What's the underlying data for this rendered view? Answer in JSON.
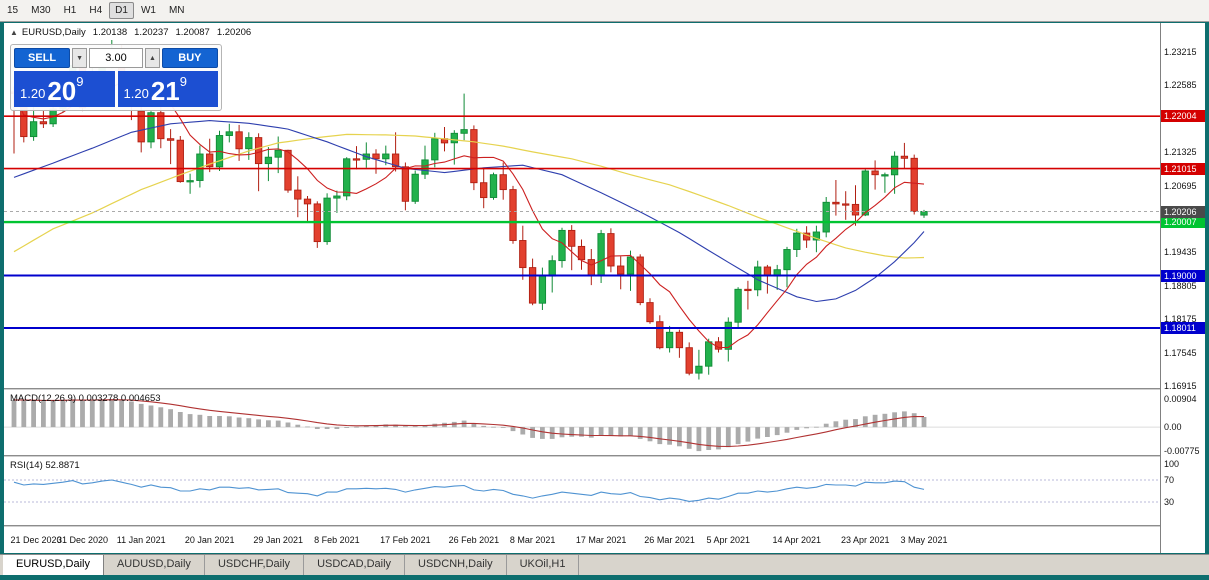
{
  "toolbar": {
    "timeframes": [
      "15",
      "M30",
      "H1",
      "H4",
      "D1",
      "W1",
      "MN"
    ],
    "active": "D1"
  },
  "chart_header": {
    "collapse_glyph": "▲",
    "symbol": "EURUSD,Daily",
    "open": "1.20138",
    "high": "1.20237",
    "low": "1.20087",
    "close": "1.20206"
  },
  "trade_panel": {
    "sell_label": "SELL",
    "buy_label": "BUY",
    "volume": "3.00",
    "stepper_down_glyph": "▼",
    "stepper_up_glyph": "▲",
    "bid": {
      "prefix": "1.20",
      "big": "20",
      "sup": "9"
    },
    "ask": {
      "prefix": "1.20",
      "big": "21",
      "sup": "9"
    },
    "button_color": "#1464d2",
    "price_box_color": "#1c4fd2"
  },
  "macd_panel": {
    "label": "MACD(12,26,9) 0.003278 0.004653"
  },
  "rsi_panel": {
    "label": "RSI(14) 52.8871"
  },
  "tabs": [
    {
      "label": "EURUSD,Daily",
      "active": true
    },
    {
      "label": "AUDUSD,Daily",
      "active": false
    },
    {
      "label": "USDCHF,Daily",
      "active": false
    },
    {
      "label": "USDCAD,Daily",
      "active": false
    },
    {
      "label": "USDCNH,Daily",
      "active": false
    },
    {
      "label": "UKOil,H1",
      "active": false
    }
  ],
  "ui_colors": {
    "frame_teal": "#0e6e6e",
    "tab_bar": "#d8d4cc",
    "toolbar_bg": "#f3f2ef"
  },
  "chart_data": {
    "type": "candlestick",
    "symbol": "EURUSD",
    "timeframe": "Daily",
    "ylim": [
      1.1688,
      1.2376
    ],
    "y_ticks": [
      1.23215,
      1.22585,
      1.21955,
      1.21325,
      1.20695,
      1.20065,
      1.19435,
      1.18805,
      1.18175,
      1.17545,
      1.16915
    ],
    "colors": {
      "up": "#22b14c",
      "up_border": "#0f8a36",
      "down": "#e2402e",
      "down_border": "#b01f12"
    },
    "x_labels": [
      {
        "text": "21 Dec 2020",
        "bar": 0
      },
      {
        "text": "31 Dec 2020",
        "bar": 7
      },
      {
        "text": "11 Jan 2021",
        "bar": 13
      },
      {
        "text": "20 Jan 2021",
        "bar": 20
      },
      {
        "text": "29 Jan 2021",
        "bar": 27
      },
      {
        "text": "8 Feb 2021",
        "bar": 33
      },
      {
        "text": "17 Feb 2021",
        "bar": 40
      },
      {
        "text": "26 Feb 2021",
        "bar": 47
      },
      {
        "text": "8 Mar 2021",
        "bar": 53
      },
      {
        "text": "17 Mar 2021",
        "bar": 60
      },
      {
        "text": "26 Mar 2021",
        "bar": 67
      },
      {
        "text": "5 Apr 2021",
        "bar": 73
      },
      {
        "text": "14 Apr 2021",
        "bar": 80
      },
      {
        "text": "23 Apr 2021",
        "bar": 87
      },
      {
        "text": "3 May 2021",
        "bar": 93
      }
    ],
    "candles": [
      [
        1.2246,
        1.2256,
        1.213,
        1.2243
      ],
      [
        1.2243,
        1.2251,
        1.2151,
        1.2162
      ],
      [
        1.2162,
        1.2223,
        1.2154,
        1.219
      ],
      [
        1.219,
        1.2212,
        1.2178,
        1.2186
      ],
      [
        1.2186,
        1.2251,
        1.218,
        1.2214
      ],
      [
        1.2214,
        1.2276,
        1.2209,
        1.225
      ],
      [
        1.225,
        1.2312,
        1.2246,
        1.2296
      ],
      [
        1.2296,
        1.2316,
        1.221,
        1.2216
      ],
      [
        1.224,
        1.2309,
        1.2228,
        1.225
      ],
      [
        1.225,
        1.2305,
        1.2244,
        1.2297
      ],
      [
        1.2297,
        1.2344,
        1.229,
        1.2326
      ],
      [
        1.2326,
        1.2335,
        1.2245,
        1.227
      ],
      [
        1.227,
        1.2285,
        1.2193,
        1.222
      ],
      [
        1.221,
        1.2226,
        1.2132,
        1.2152
      ],
      [
        1.2152,
        1.221,
        1.214,
        1.2207
      ],
      [
        1.2207,
        1.2223,
        1.214,
        1.2158
      ],
      [
        1.2158,
        1.2176,
        1.211,
        1.2155
      ],
      [
        1.2155,
        1.2163,
        1.2075,
        1.2077
      ],
      [
        1.2077,
        1.2092,
        1.2054,
        1.2079
      ],
      [
        1.2079,
        1.2145,
        1.2066,
        1.2129
      ],
      [
        1.2129,
        1.2158,
        1.2095,
        1.2105
      ],
      [
        1.2105,
        1.2173,
        1.2097,
        1.2164
      ],
      [
        1.2164,
        1.2186,
        1.2151,
        1.2171
      ],
      [
        1.2171,
        1.2184,
        1.2116,
        1.2139
      ],
      [
        1.2139,
        1.217,
        1.2118,
        1.216
      ],
      [
        1.216,
        1.2168,
        1.2059,
        1.2111
      ],
      [
        1.2111,
        1.2142,
        1.2078,
        1.2123
      ],
      [
        1.2123,
        1.2162,
        1.2093,
        1.2136
      ],
      [
        1.2136,
        1.2137,
        1.2056,
        1.2061
      ],
      [
        1.2061,
        1.2087,
        1.201,
        1.2044
      ],
      [
        1.2044,
        1.205,
        1.2002,
        1.2035
      ],
      [
        1.2035,
        1.204,
        1.1952,
        1.1964
      ],
      [
        1.1964,
        1.2055,
        1.1958,
        1.2046
      ],
      [
        1.2046,
        1.206,
        1.2018,
        1.205
      ],
      [
        1.205,
        1.2123,
        1.2042,
        1.212
      ],
      [
        1.212,
        1.2144,
        1.21,
        1.2119
      ],
      [
        1.2119,
        1.2151,
        1.2103,
        1.2129
      ],
      [
        1.2129,
        1.2138,
        1.2092,
        1.212
      ],
      [
        1.212,
        1.2145,
        1.2108,
        1.2129
      ],
      [
        1.2129,
        1.217,
        1.2096,
        1.2105
      ],
      [
        1.2105,
        1.2113,
        1.2023,
        1.204
      ],
      [
        1.204,
        1.2098,
        1.2035,
        1.2091
      ],
      [
        1.2091,
        1.2145,
        1.2082,
        1.2118
      ],
      [
        1.2118,
        1.2169,
        1.2104,
        1.2158
      ],
      [
        1.2158,
        1.218,
        1.2134,
        1.215
      ],
      [
        1.215,
        1.2174,
        1.2109,
        1.2168
      ],
      [
        1.2168,
        1.2243,
        1.2155,
        1.2175
      ],
      [
        1.2175,
        1.2183,
        1.2061,
        1.2075
      ],
      [
        1.2075,
        1.2101,
        1.2027,
        1.2047
      ],
      [
        1.2047,
        1.2094,
        1.2043,
        1.209
      ],
      [
        1.209,
        1.2113,
        1.2043,
        1.2062
      ],
      [
        1.2062,
        1.2069,
        1.196,
        1.1966
      ],
      [
        1.1966,
        1.1994,
        1.1892,
        1.1915
      ],
      [
        1.1915,
        1.1932,
        1.1844,
        1.1848
      ],
      [
        1.1848,
        1.1915,
        1.1835,
        1.1899
      ],
      [
        1.1899,
        1.1938,
        1.1868,
        1.1928
      ],
      [
        1.1928,
        1.199,
        1.1915,
        1.1985
      ],
      [
        1.1985,
        1.1995,
        1.191,
        1.1955
      ],
      [
        1.1955,
        1.1968,
        1.1911,
        1.193
      ],
      [
        1.193,
        1.195,
        1.1882,
        1.1899
      ],
      [
        1.1899,
        1.1986,
        1.1886,
        1.1979
      ],
      [
        1.1979,
        1.1989,
        1.1906,
        1.1918
      ],
      [
        1.1918,
        1.1936,
        1.1874,
        1.1903
      ],
      [
        1.1903,
        1.1947,
        1.1871,
        1.1935
      ],
      [
        1.1935,
        1.194,
        1.1844,
        1.1849
      ],
      [
        1.1849,
        1.1857,
        1.1809,
        1.1813
      ],
      [
        1.1813,
        1.1825,
        1.1761,
        1.1764
      ],
      [
        1.1764,
        1.1805,
        1.1755,
        1.1793
      ],
      [
        1.1793,
        1.1798,
        1.1745,
        1.1764
      ],
      [
        1.1764,
        1.1774,
        1.1712,
        1.1716
      ],
      [
        1.1716,
        1.176,
        1.1704,
        1.1729
      ],
      [
        1.1729,
        1.1781,
        1.1713,
        1.1775
      ],
      [
        1.1775,
        1.1784,
        1.1755,
        1.1761
      ],
      [
        1.1761,
        1.1821,
        1.1738,
        1.1812
      ],
      [
        1.1812,
        1.1878,
        1.1803,
        1.1874
      ],
      [
        1.1874,
        1.189,
        1.1836,
        1.1873
      ],
      [
        1.1873,
        1.1928,
        1.1861,
        1.1916
      ],
      [
        1.1916,
        1.192,
        1.1866,
        1.1899
      ],
      [
        1.1899,
        1.192,
        1.1873,
        1.1911
      ],
      [
        1.1911,
        1.1954,
        1.1878,
        1.1949
      ],
      [
        1.1949,
        1.1988,
        1.1935,
        1.198
      ],
      [
        1.198,
        1.1993,
        1.1952,
        1.1967
      ],
      [
        1.1967,
        1.1994,
        1.1944,
        1.1982
      ],
      [
        1.1982,
        1.2048,
        1.1972,
        1.2038
      ],
      [
        1.2038,
        1.208,
        1.2013,
        1.2035
      ],
      [
        1.2035,
        1.2059,
        1.2005,
        1.2034
      ],
      [
        1.2034,
        1.207,
        1.1994,
        1.2014
      ],
      [
        1.2014,
        1.21,
        1.2012,
        1.2097
      ],
      [
        1.2097,
        1.2117,
        1.2062,
        1.209
      ],
      [
        1.209,
        1.2094,
        1.2056,
        1.209
      ],
      [
        1.209,
        1.2134,
        1.2054,
        1.2125
      ],
      [
        1.2125,
        1.215,
        1.2101,
        1.2121
      ],
      [
        1.2121,
        1.2128,
        1.2015,
        1.2021
      ],
      [
        1.20138,
        1.20237,
        1.20087,
        1.20206
      ]
    ],
    "ma_fast": {
      "period": 8,
      "color": "#cc2020"
    },
    "ma_mid": {
      "color": "#2e3fae",
      "points": [
        [
          0,
          1.2085
        ],
        [
          4,
          1.2112
        ],
        [
          8,
          1.214
        ],
        [
          12,
          1.217
        ],
        [
          16,
          1.2186
        ],
        [
          20,
          1.2192
        ],
        [
          24,
          1.2187
        ],
        [
          28,
          1.2176
        ],
        [
          32,
          1.2152
        ],
        [
          36,
          1.2124
        ],
        [
          40,
          1.2102
        ],
        [
          44,
          1.2094
        ],
        [
          48,
          1.2103
        ],
        [
          52,
          1.2108
        ],
        [
          56,
          1.209
        ],
        [
          60,
          1.2056
        ],
        [
          64,
          1.202
        ],
        [
          68,
          1.1981
        ],
        [
          72,
          1.1936
        ],
        [
          76,
          1.1892
        ],
        [
          80,
          1.186
        ],
        [
          82,
          1.1851
        ],
        [
          84,
          1.1856
        ],
        [
          86,
          1.1872
        ],
        [
          88,
          1.1896
        ],
        [
          90,
          1.1926
        ],
        [
          92,
          1.1962
        ],
        [
          93,
          1.1983
        ]
      ]
    },
    "ma_slow": {
      "color": "#e6d34f",
      "points": [
        [
          0,
          1.1945
        ],
        [
          4,
          1.1988
        ],
        [
          8,
          1.2018
        ],
        [
          13,
          1.2062
        ],
        [
          17,
          1.209
        ],
        [
          20,
          1.211
        ],
        [
          24,
          1.2135
        ],
        [
          27,
          1.215
        ],
        [
          31,
          1.216
        ],
        [
          34,
          1.2166
        ],
        [
          38,
          1.2165
        ],
        [
          41,
          1.2163
        ],
        [
          47,
          1.2152
        ],
        [
          50,
          1.2144
        ],
        [
          53,
          1.2133
        ],
        [
          57,
          1.212
        ],
        [
          60,
          1.2106
        ],
        [
          63,
          1.209
        ],
        [
          67,
          1.2071
        ],
        [
          70,
          1.2052
        ],
        [
          73,
          1.2032
        ],
        [
          76,
          1.201
        ],
        [
          79,
          1.199
        ],
        [
          82,
          1.197
        ],
        [
          85,
          1.1952
        ],
        [
          87,
          1.1944
        ],
        [
          89,
          1.1937
        ],
        [
          91,
          1.1933
        ],
        [
          93,
          1.1934
        ]
      ]
    },
    "levels": [
      {
        "price": 1.22004,
        "label": "1.22004",
        "color": "#d40000",
        "width": 1.6
      },
      {
        "price": 1.21015,
        "label": "1.21015",
        "color": "#d40000",
        "width": 1.6
      },
      {
        "price": 1.20007,
        "label": "1.20007",
        "color": "#00c431",
        "width": 2.4
      },
      {
        "price": 1.19,
        "label": "1.19000",
        "color": "#0000cd",
        "width": 2
      },
      {
        "price": 1.18011,
        "label": "1.18011",
        "color": "#0000cd",
        "width": 2
      }
    ],
    "current_price": {
      "value": 1.20206,
      "label": "1.20206",
      "tag_color": "#4a4a4a",
      "line_color": "#aaaaaa"
    },
    "macd": {
      "main": 0.003278,
      "signal": 0.004653,
      "hist_color": "#ababab",
      "signal_color": "#b03232",
      "signal_period": 9,
      "ylim": [
        -0.009,
        0.012
      ],
      "ticks": [
        {
          "value": 0.00904,
          "label": "0.00904"
        },
        {
          "value": 0,
          "label": "0.00"
        },
        {
          "value": -0.00775,
          "label": "-0.00775"
        }
      ],
      "hist": [
        0.0088,
        0.0086,
        0.0085,
        0.0084,
        0.0086,
        0.0088,
        0.009,
        0.0087,
        0.0089,
        0.009,
        0.00904,
        0.0088,
        0.0083,
        0.0075,
        0.007,
        0.0064,
        0.0058,
        0.0049,
        0.0042,
        0.004,
        0.0036,
        0.0036,
        0.0035,
        0.0031,
        0.0029,
        0.0025,
        0.0022,
        0.0021,
        0.0015,
        0.0008,
        0.0002,
        -0.0006,
        -0.0006,
        -0.0006,
        -0.0003,
        0.0001,
        0.0005,
        0.0007,
        0.0009,
        0.0008,
        0.0003,
        0.0003,
        0.0006,
        0.0011,
        0.0014,
        0.0017,
        0.0021,
        0.0012,
        0.0004,
        0.0001,
        -0.0002,
        -0.0013,
        -0.0024,
        -0.0035,
        -0.0038,
        -0.0038,
        -0.0033,
        -0.0031,
        -0.0031,
        -0.0034,
        -0.0027,
        -0.0028,
        -0.003,
        -0.0029,
        -0.0038,
        -0.0046,
        -0.0055,
        -0.0057,
        -0.0062,
        -0.007,
        -0.00775,
        -0.0074,
        -0.0072,
        -0.0065,
        -0.0055,
        -0.0047,
        -0.0037,
        -0.0032,
        -0.0026,
        -0.0018,
        -0.0009,
        -0.0004,
        0.0001,
        0.0011,
        0.0019,
        0.0024,
        0.0026,
        0.0035,
        0.004,
        0.0043,
        0.0048,
        0.0051,
        0.0045,
        0.003278
      ]
    },
    "rsi": {
      "value": 52.8871,
      "color": "#4f93d2",
      "levels": [
        70,
        30
      ],
      "ylim": [
        -12,
        112
      ],
      "ticks": [
        {
          "value": 100,
          "label": "100"
        },
        {
          "value": 70,
          "label": "70"
        },
        {
          "value": 30,
          "label": "30"
        }
      ],
      "values": [
        66,
        61,
        63,
        62,
        64,
        66,
        69,
        63,
        65,
        68,
        70,
        66,
        62,
        57,
        61,
        57,
        56,
        50,
        50,
        54,
        52,
        57,
        57,
        55,
        56,
        52,
        53,
        54,
        47,
        46,
        45,
        41,
        48,
        48,
        54,
        54,
        55,
        54,
        55,
        53,
        48,
        52,
        55,
        58,
        57,
        59,
        60,
        52,
        50,
        53,
        51,
        44,
        41,
        37,
        41,
        44,
        48,
        46,
        44,
        42,
        48,
        45,
        44,
        47,
        40,
        38,
        34,
        37,
        35,
        31,
        33,
        37,
        35,
        40,
        46,
        46,
        50,
        48,
        50,
        54,
        57,
        55,
        57,
        62,
        61,
        61,
        59,
        66,
        65,
        65,
        68,
        67,
        57,
        52.89
      ]
    }
  }
}
